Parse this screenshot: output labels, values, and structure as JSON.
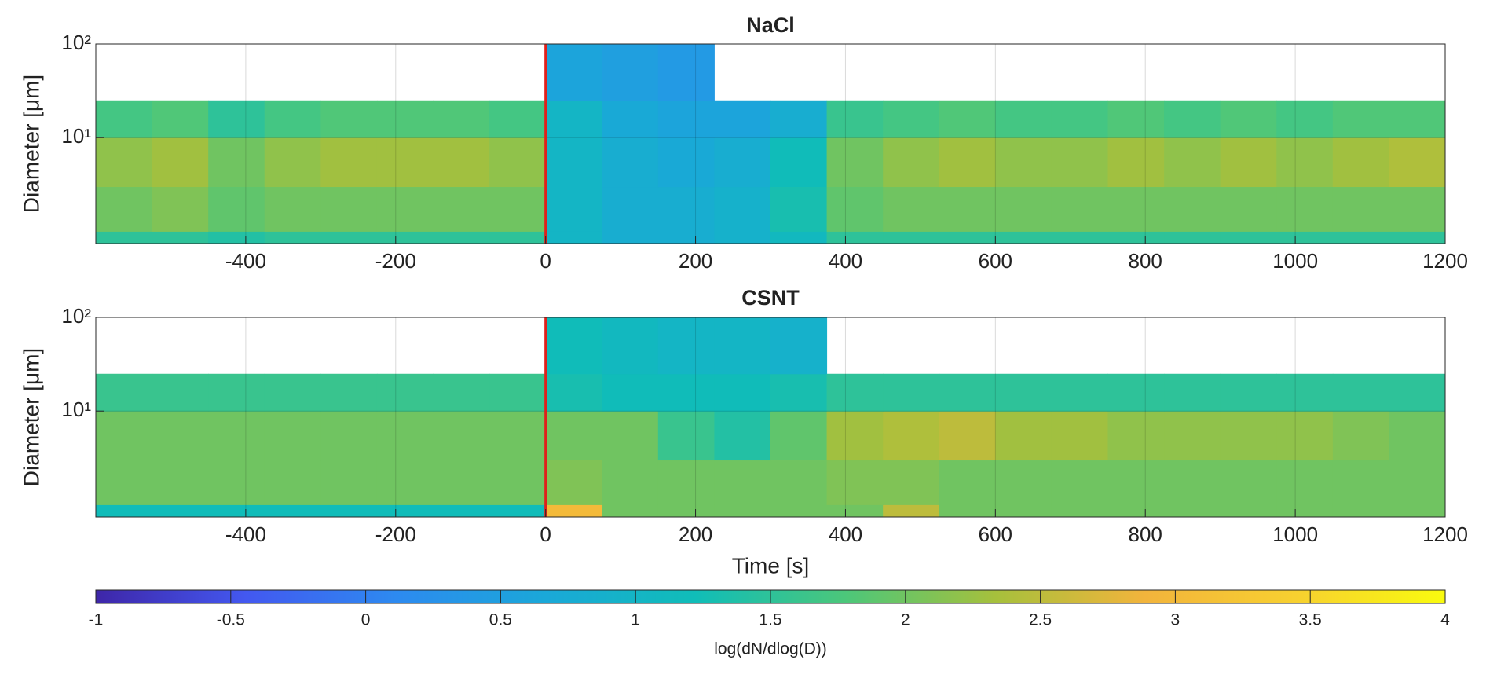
{
  "chart_data": [
    {
      "type": "heatmap",
      "title": "NaCl",
      "ylabel": "Diameter [μm]",
      "log_y": true,
      "grid": true,
      "xlim": [
        -600,
        1200
      ],
      "xticks": [
        -400,
        -200,
        0,
        200,
        400,
        600,
        800,
        1000,
        1200
      ],
      "ylim": [
        0.74,
        100
      ],
      "yticks": [
        {
          "value": 10,
          "label": "10¹"
        },
        {
          "value": 100,
          "label": "10²"
        }
      ],
      "vline": {
        "x": 0,
        "color": "#e0201b"
      },
      "x_edges": [
        -600,
        -525,
        -450,
        -375,
        -300,
        -225,
        -150,
        -75,
        0,
        75,
        150,
        225,
        300,
        375,
        450,
        525,
        600,
        675,
        750,
        825,
        900,
        975,
        1050,
        1125,
        1200
      ],
      "y_edges": [
        0.74,
        1,
        3,
        10,
        25,
        100
      ],
      "z": [
        [
          1.5,
          1.5,
          1.4,
          1.5,
          1.5,
          1.5,
          1.5,
          1.5,
          1.0,
          0.8,
          0.8,
          0.9,
          1.1,
          1.5,
          1.5,
          1.5,
          1.5,
          1.5,
          1.5,
          1.5,
          1.5,
          1.5,
          1.5,
          1.5
        ],
        [
          2.0,
          2.1,
          1.9,
          2.0,
          2.0,
          2.0,
          2.0,
          2.0,
          1.0,
          0.8,
          0.8,
          0.9,
          1.3,
          1.9,
          2.0,
          2.0,
          2.0,
          2.0,
          2.0,
          2.0,
          2.0,
          2.0,
          2.0,
          2.0
        ],
        [
          2.2,
          2.3,
          2.0,
          2.2,
          2.3,
          2.3,
          2.3,
          2.2,
          1.0,
          0.8,
          0.7,
          0.8,
          1.2,
          2.0,
          2.2,
          2.3,
          2.2,
          2.2,
          2.3,
          2.2,
          2.3,
          2.2,
          2.3,
          2.4
        ],
        [
          1.7,
          1.8,
          1.5,
          1.7,
          1.8,
          1.8,
          1.8,
          1.7,
          1.0,
          0.7,
          0.6,
          0.6,
          0.8,
          1.6,
          1.7,
          1.8,
          1.7,
          1.7,
          1.8,
          1.7,
          1.8,
          1.7,
          1.8,
          1.8
        ],
        [
          null,
          null,
          null,
          null,
          null,
          null,
          null,
          null,
          0.6,
          0.5,
          0.4,
          null,
          null,
          null,
          null,
          null,
          null,
          null,
          null,
          null,
          null,
          null,
          null,
          null
        ]
      ]
    },
    {
      "type": "heatmap",
      "title": "CSNT",
      "ylabel": "Diameter [μm]",
      "xlabel": "Time [s]",
      "log_y": true,
      "grid": true,
      "xlim": [
        -600,
        1200
      ],
      "xticks": [
        -400,
        -200,
        0,
        200,
        400,
        600,
        800,
        1000,
        1200
      ],
      "ylim": [
        0.74,
        100
      ],
      "yticks": [
        {
          "value": 10,
          "label": "10¹"
        },
        {
          "value": 100,
          "label": "10²"
        }
      ],
      "vline": {
        "x": 0,
        "color": "#e0201b"
      },
      "x_edges": [
        -600,
        -525,
        -450,
        -375,
        -300,
        -225,
        -150,
        -75,
        0,
        75,
        150,
        225,
        300,
        375,
        450,
        525,
        600,
        675,
        750,
        825,
        900,
        975,
        1050,
        1125,
        1200
      ],
      "y_edges": [
        0.74,
        1,
        3,
        10,
        25,
        100
      ],
      "z": [
        [
          1.2,
          1.2,
          1.2,
          1.2,
          1.2,
          1.2,
          1.2,
          1.2,
          3.0,
          2.0,
          2.0,
          2.0,
          2.0,
          2.0,
          2.5,
          2.0,
          2.0,
          2.0,
          2.0,
          2.0,
          2.0,
          2.0,
          2.0,
          2.0
        ],
        [
          2.0,
          2.0,
          2.0,
          2.0,
          2.0,
          2.0,
          2.0,
          2.0,
          2.1,
          2.0,
          2.0,
          2.0,
          2.0,
          2.1,
          2.1,
          2.0,
          2.0,
          2.0,
          2.0,
          2.0,
          2.0,
          2.0,
          2.0,
          2.0
        ],
        [
          2.0,
          2.0,
          2.0,
          2.0,
          2.0,
          2.0,
          2.0,
          2.0,
          2.0,
          2.0,
          1.6,
          1.4,
          1.9,
          2.3,
          2.4,
          2.5,
          2.3,
          2.3,
          2.2,
          2.2,
          2.2,
          2.2,
          2.1,
          2.0
        ],
        [
          1.6,
          1.6,
          1.6,
          1.6,
          1.6,
          1.6,
          1.6,
          1.6,
          1.3,
          1.2,
          1.2,
          1.2,
          1.3,
          1.5,
          1.5,
          1.5,
          1.5,
          1.5,
          1.5,
          1.5,
          1.5,
          1.5,
          1.5,
          1.5
        ],
        [
          null,
          null,
          null,
          null,
          null,
          null,
          null,
          null,
          1.2,
          1.1,
          1.0,
          1.0,
          0.9,
          null,
          null,
          null,
          null,
          null,
          null,
          null,
          null,
          null,
          null,
          null
        ]
      ]
    },
    {
      "type": "colorbar",
      "label": "log(dN/dlog(D))",
      "clim": [
        -1,
        4
      ],
      "ticks": [
        -1,
        -0.5,
        0,
        0.5,
        1,
        1.5,
        2,
        2.5,
        3,
        3.5,
        4
      ],
      "colormap": [
        "#3e26a8",
        "#4358f0",
        "#2d8af0",
        "#1aa8d8",
        "#10bdb8",
        "#4cc77a",
        "#a6c03c",
        "#f2b43c",
        "#f7d030",
        "#f9fb0e"
      ]
    }
  ]
}
